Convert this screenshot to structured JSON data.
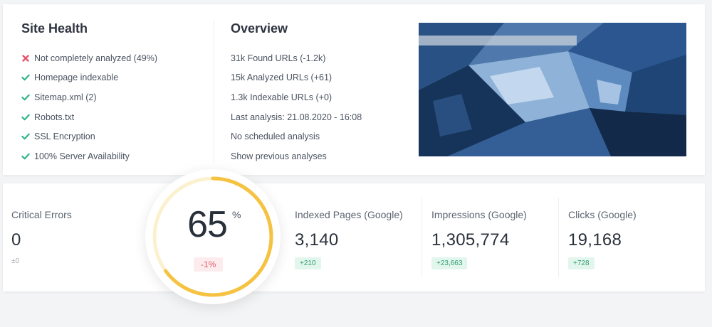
{
  "site_health": {
    "title": "Site Health",
    "items": [
      {
        "label": "Not completely analyzed (49%)",
        "status": "error"
      },
      {
        "label": "Homepage indexable",
        "status": "ok"
      },
      {
        "label": "Sitemap.xml (2)",
        "status": "ok"
      },
      {
        "label": "Robots.txt",
        "status": "ok"
      },
      {
        "label": "SSL Encryption",
        "status": "ok"
      },
      {
        "label": "100% Server Availability",
        "status": "ok"
      }
    ]
  },
  "overview": {
    "title": "Overview",
    "items": [
      "31k Found URLs (-1.2k)",
      "15k Analyzed URLs (+61)",
      "1.3k Indexable URLs (+0)",
      "Last analysis: 21.08.2020 - 16:08",
      "No scheduled analysis",
      "Show previous analyses"
    ]
  },
  "score": {
    "value": "65",
    "unit": "%",
    "progress": 0.65,
    "delta": "-1%"
  },
  "metrics": {
    "critical_errors": {
      "label": "Critical Errors",
      "value": "0",
      "delta": "±0"
    },
    "indexed_pages": {
      "label": "Indexed Pages (Google)",
      "value": "3,140",
      "delta": "+210"
    },
    "impressions": {
      "label": "Impressions (Google)",
      "value": "1,305,774",
      "delta": "+23,663"
    },
    "clicks": {
      "label": "Clicks (Google)",
      "value": "19,168",
      "delta": "+728"
    }
  },
  "colors": {
    "ok": "#2fb58a",
    "error": "#e8566a",
    "score_ring": "#f5c242",
    "score_track": "#fbf1cf"
  }
}
